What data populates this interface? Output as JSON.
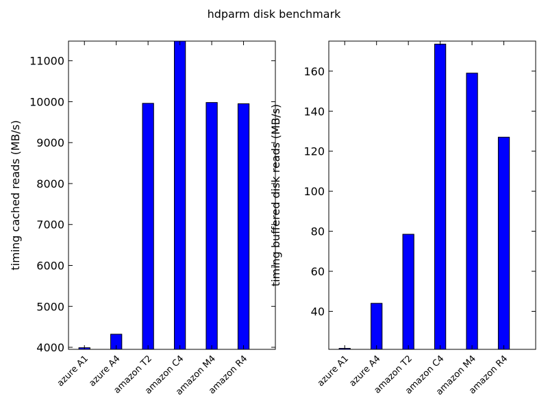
{
  "figure": {
    "title": "hdparm disk benchmark"
  },
  "chart_data": [
    {
      "type": "bar",
      "title": "",
      "xlabel": "",
      "ylabel": "timing cached reads (MB/s)",
      "categories": [
        "azure A1",
        "azure A4",
        "amazon T2",
        "amazon C4",
        "amazon M4",
        "amazon R4"
      ],
      "values": [
        3990,
        4320,
        9960,
        11480,
        9980,
        9950
      ],
      "ylim": [
        3950,
        11480
      ],
      "yticks": [
        4000,
        5000,
        6000,
        7000,
        8000,
        9000,
        10000,
        11000
      ],
      "grid": false,
      "colors": {
        "bar": "#0000ff",
        "edge": "#000000"
      }
    },
    {
      "type": "bar",
      "title": "",
      "xlabel": "",
      "ylabel": "timing buffered disk reads (MB/s)",
      "categories": [
        "azure A1",
        "azure A4",
        "amazon T2",
        "amazon C4",
        "amazon M4",
        "amazon R4"
      ],
      "values": [
        21.5,
        44,
        78.5,
        173.5,
        159,
        127
      ],
      "ylim": [
        21,
        175
      ],
      "yticks": [
        40,
        60,
        80,
        100,
        120,
        140,
        160
      ],
      "grid": false,
      "colors": {
        "bar": "#0000ff",
        "edge": "#000000"
      }
    }
  ]
}
